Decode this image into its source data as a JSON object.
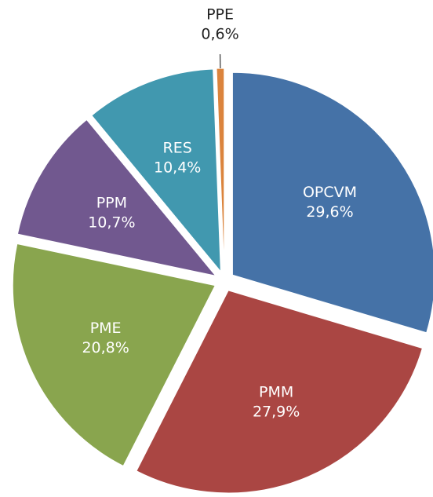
{
  "chart_data": {
    "type": "pie",
    "categories": [
      "OPCVM",
      "PMM",
      "PME",
      "PPM",
      "RES",
      "PPE"
    ],
    "values": [
      29.6,
      27.9,
      20.8,
      10.7,
      10.4,
      0.6
    ],
    "value_labels": [
      "29,6%",
      "27,9%",
      "20,8%",
      "10,7%",
      "10,4%",
      "0,6%"
    ],
    "colors": [
      "#4572a7",
      "#aa4643",
      "#89a54e",
      "#71588f",
      "#4198af",
      "#db843d"
    ]
  }
}
